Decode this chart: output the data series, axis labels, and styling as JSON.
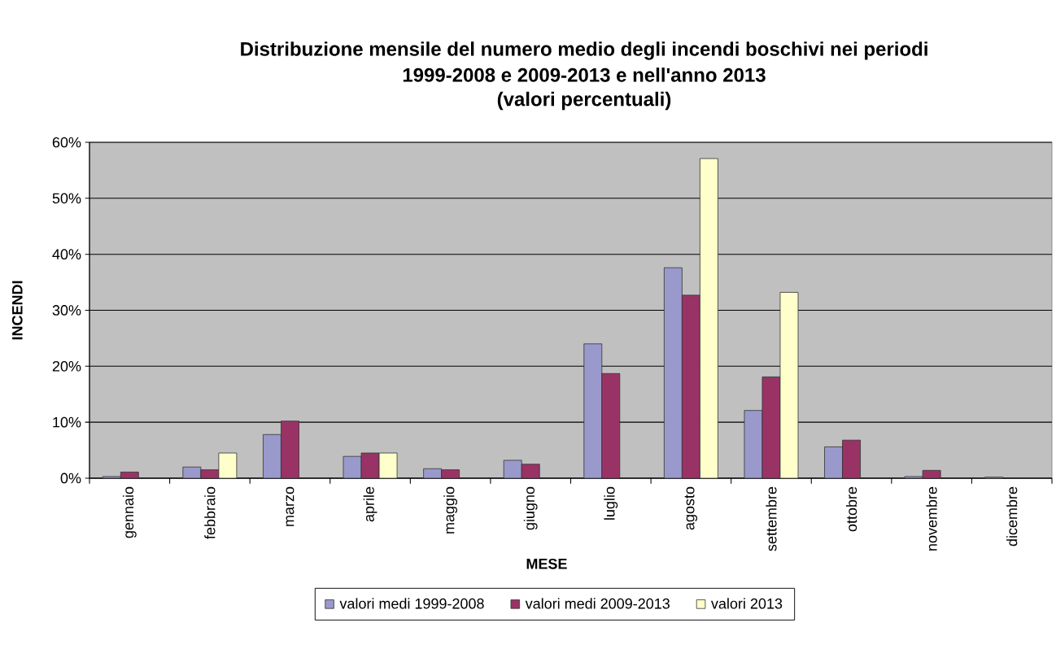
{
  "chart_data": {
    "type": "bar",
    "title": "Distribuzione mensile del numero medio degli incendi boschivi nei periodi 1999-2008 e 2009-2013 e nell'anno 2013",
    "subtitle": "(valori percentuali)",
    "xlabel": "MESE",
    "ylabel": "INCENDI",
    "categories": [
      "gennaio",
      "febbraio",
      "marzo",
      "aprile",
      "maggio",
      "giugno",
      "luglio",
      "agosto",
      "settembre",
      "ottobre",
      "novembre",
      "dicembre"
    ],
    "series": [
      {
        "name": "valori medi 1999-2008",
        "color": "#9999cc",
        "values": [
          0.3,
          2.0,
          7.8,
          3.9,
          1.7,
          3.2,
          24.0,
          37.6,
          12.1,
          5.6,
          0.3,
          0.2
        ]
      },
      {
        "name": "valori medi 2009-2013",
        "color": "#993366",
        "values": [
          1.1,
          1.5,
          10.2,
          4.5,
          1.5,
          2.5,
          18.7,
          32.7,
          18.1,
          6.8,
          1.4,
          null
        ]
      },
      {
        "name": "valori 2013",
        "color": "#ffffcc",
        "values": [
          null,
          4.5,
          null,
          4.5,
          null,
          null,
          null,
          57.1,
          33.2,
          null,
          null,
          null
        ]
      }
    ],
    "ylim": [
      0,
      60
    ],
    "yticks": [
      {
        "value": 0,
        "label": "0%"
      },
      {
        "value": 10,
        "label": "10%"
      },
      {
        "value": 20,
        "label": "20%"
      },
      {
        "value": 30,
        "label": "30%"
      },
      {
        "value": 40,
        "label": "40%"
      },
      {
        "value": 50,
        "label": "50%"
      },
      {
        "value": 60,
        "label": "60%"
      }
    ],
    "grid": "y",
    "legend": "bottom"
  }
}
